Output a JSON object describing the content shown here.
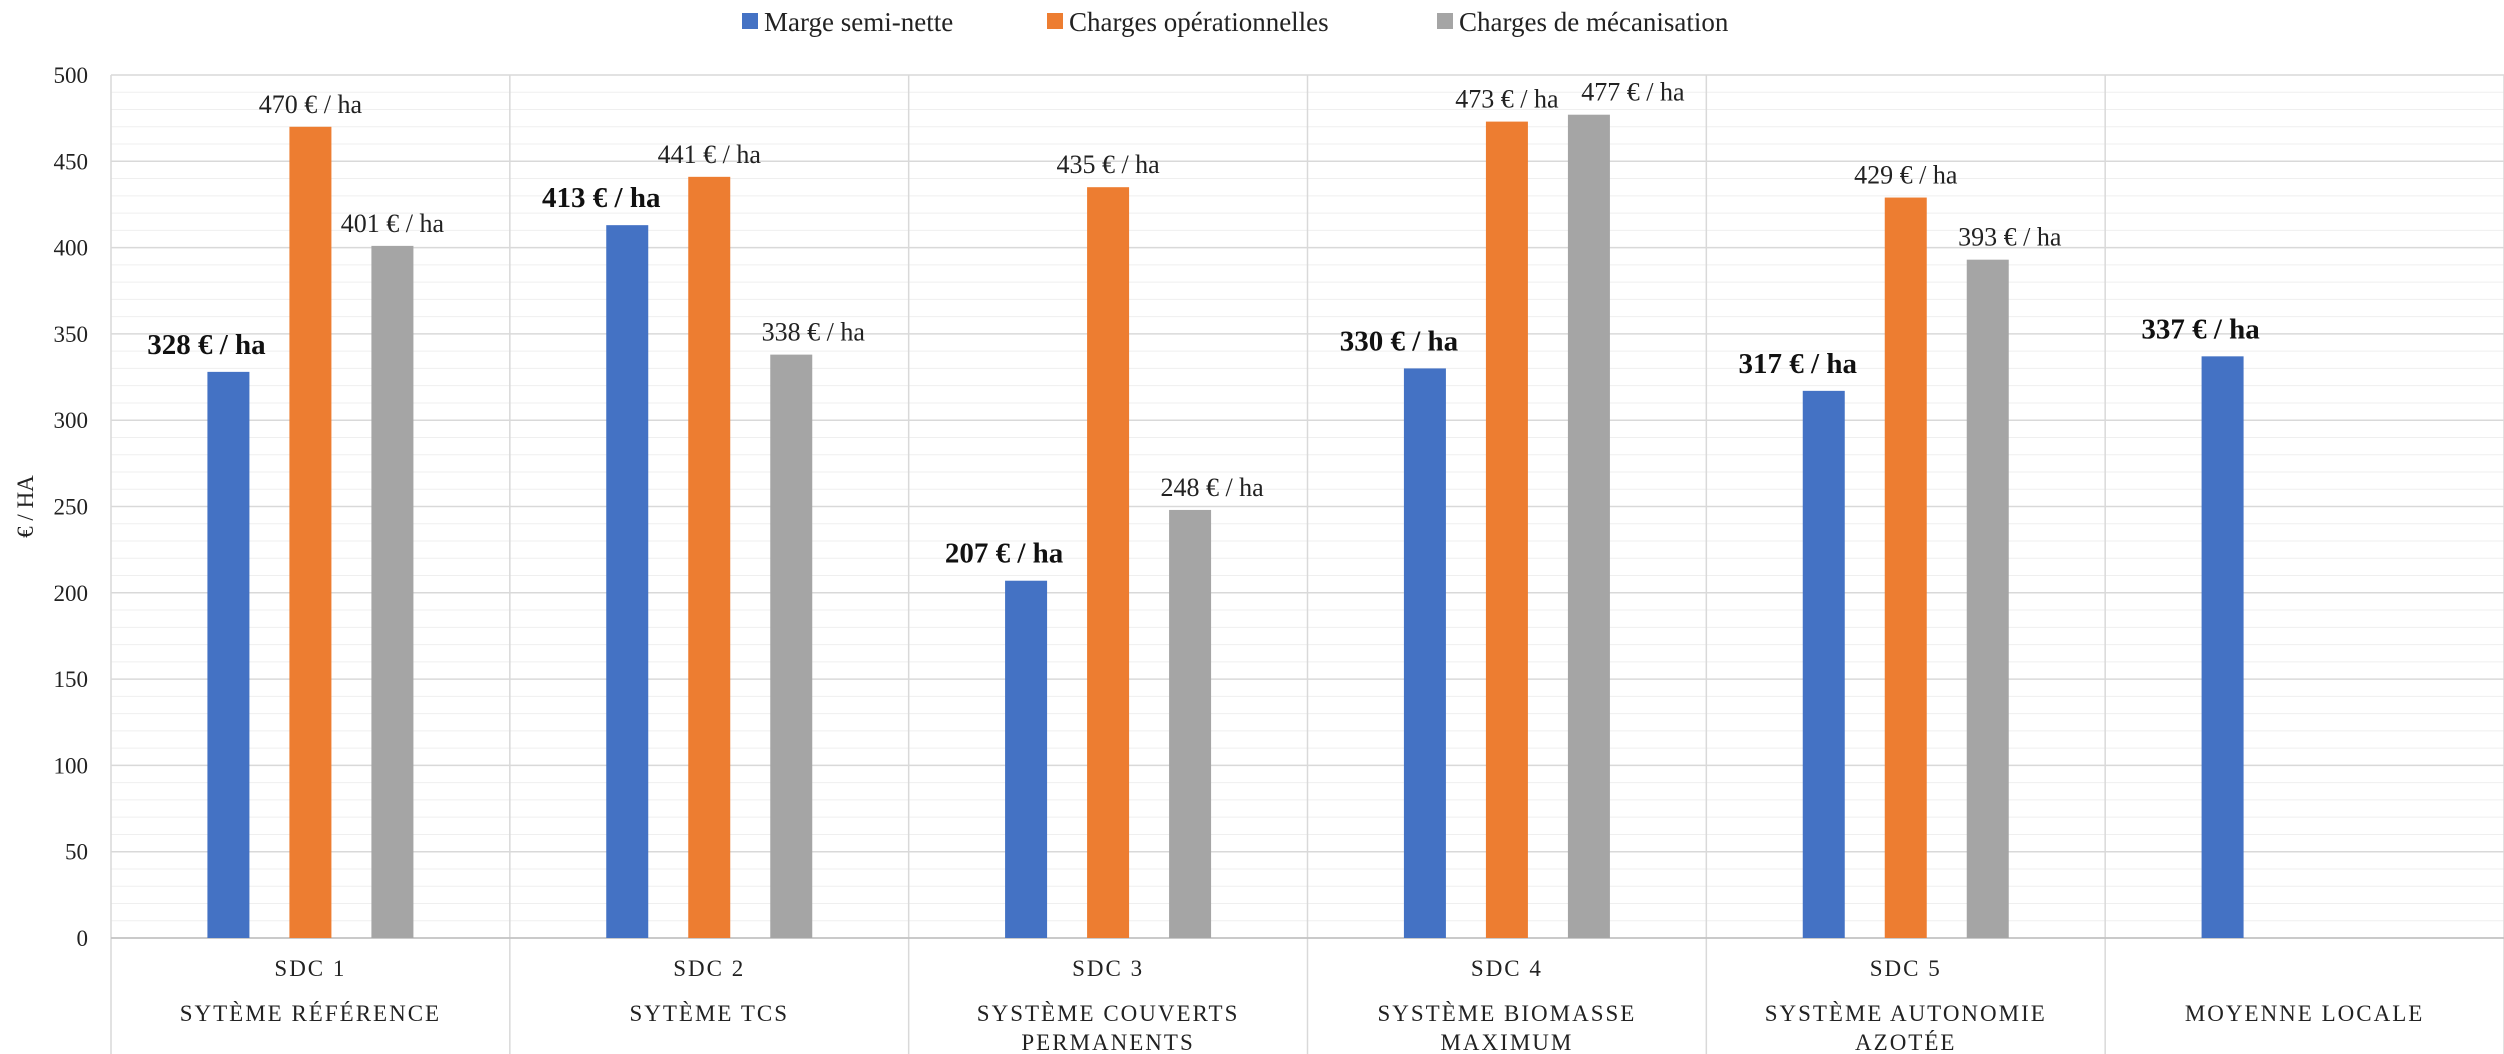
{
  "chart_data": {
    "type": "bar",
    "title": "",
    "xlabel": "",
    "ylabel": "€ / HA",
    "ylim": [
      0,
      500
    ],
    "yticks": [
      0,
      50,
      100,
      150,
      200,
      250,
      300,
      350,
      400,
      450,
      500
    ],
    "grid": true,
    "legend_position": "top",
    "categories": [
      {
        "code": "SDC 1",
        "label_lines": [
          "SYTÈME RÉFÉRENCE"
        ]
      },
      {
        "code": "SDC 2",
        "label_lines": [
          "SYTÈME TCS"
        ]
      },
      {
        "code": "SDC 3",
        "label_lines": [
          "SYSTÈME COUVERTS",
          "PERMANENTS"
        ]
      },
      {
        "code": "SDC 4",
        "label_lines": [
          "SYSTÈME BIOMASSE",
          "MAXIMUM"
        ]
      },
      {
        "code": "SDC 5",
        "label_lines": [
          "SYSTÈME AUTONOMIE",
          "AZOTÉE"
        ]
      },
      {
        "code": "",
        "label_lines": [
          "MOYENNE LOCALE"
        ]
      }
    ],
    "series": [
      {
        "name": "Marge semi-nette",
        "color": "#4472C4",
        "values": [
          328,
          413,
          207,
          330,
          317,
          337
        ],
        "labels": [
          "328 € / ha",
          "413 € / ha",
          "207 € / ha",
          "330 € / ha",
          "317 € / ha",
          "337 € / ha"
        ]
      },
      {
        "name": "Charges opérationnelles",
        "color": "#ED7D31",
        "values": [
          470,
          441,
          435,
          473,
          429,
          null
        ],
        "labels": [
          "470 € / ha",
          "441 € / ha",
          "435 € / ha",
          "473 € / ha",
          "429 € / ha",
          null
        ]
      },
      {
        "name": "Charges de mécanisation",
        "color": "#A5A5A5",
        "values": [
          401,
          338,
          248,
          477,
          393,
          null
        ],
        "labels": [
          "401 € / ha",
          "338 € / ha",
          "248 € / ha",
          "477 € / ha",
          "393 € / ha",
          null
        ]
      }
    ]
  }
}
